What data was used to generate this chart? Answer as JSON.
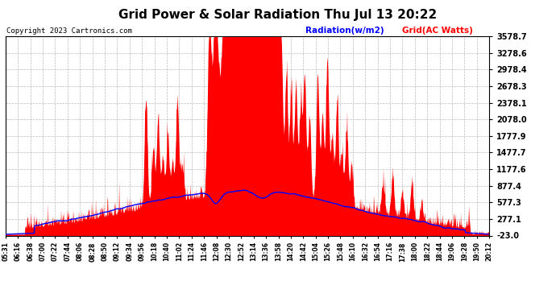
{
  "title": "Grid Power & Solar Radiation Thu Jul 13 20:22",
  "copyright": "Copyright 2023 Cartronics.com",
  "legend_radiation": "Radiation(w/m2)",
  "legend_grid": "Grid(AC Watts)",
  "legend_radiation_color": "blue",
  "legend_grid_color": "red",
  "background_color": "#ffffff",
  "plot_bg_color": "#ffffff",
  "grid_color": "#aaaaaa",
  "fill_color": "red",
  "line_color": "blue",
  "yticks": [
    3578.7,
    3278.6,
    2978.4,
    2678.3,
    2378.1,
    2078.0,
    1777.9,
    1477.7,
    1177.6,
    877.4,
    577.3,
    277.1,
    -23.0
  ],
  "ymin": -23.0,
  "ymax": 3578.7,
  "xtick_labels": [
    "05:31",
    "06:16",
    "06:38",
    "07:00",
    "07:22",
    "07:44",
    "08:06",
    "08:28",
    "08:50",
    "09:12",
    "09:34",
    "09:56",
    "10:18",
    "10:40",
    "11:02",
    "11:24",
    "11:46",
    "12:08",
    "12:30",
    "12:52",
    "13:14",
    "13:36",
    "13:58",
    "14:20",
    "14:42",
    "15:04",
    "15:26",
    "15:48",
    "16:10",
    "16:32",
    "16:54",
    "17:16",
    "17:38",
    "18:00",
    "18:22",
    "18:44",
    "19:06",
    "19:28",
    "19:50",
    "20:12"
  ]
}
